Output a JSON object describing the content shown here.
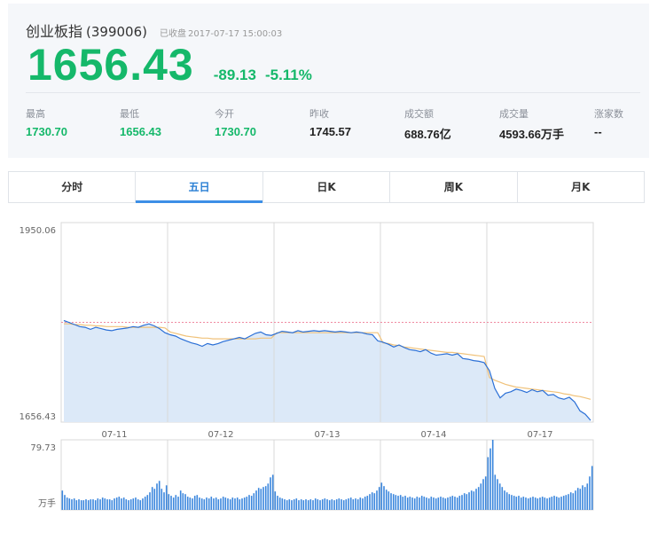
{
  "quote": {
    "name": "创业板指",
    "code": "(399006)",
    "status": "已收盘",
    "timestamp": "2017-07-17  15:00:03",
    "price": "1656.43",
    "change": "-89.13",
    "change_pct": "-5.11%"
  },
  "stats": [
    {
      "label": "最高",
      "value": "1730.70",
      "color": "#15b86a"
    },
    {
      "label": "最低",
      "value": "1656.43",
      "color": "#15b86a"
    },
    {
      "label": "今开",
      "value": "1730.70",
      "color": "#15b86a"
    },
    {
      "label": "昨收",
      "value": "1745.57",
      "color": "#222222"
    },
    {
      "label": "成交额",
      "value": "688.76亿",
      "color": "#222222"
    },
    {
      "label": "成交量",
      "value": "4593.66万手",
      "color": "#222222"
    },
    {
      "label": "涨家数",
      "value": "--",
      "color": "#222222"
    }
  ],
  "tabs": [
    {
      "label": "分时",
      "active": false
    },
    {
      "label": "五日",
      "active": true
    },
    {
      "label": "日K",
      "active": false
    },
    {
      "label": "周K",
      "active": false
    },
    {
      "label": "月K",
      "active": false
    }
  ],
  "chart_data": [
    {
      "type": "line",
      "title": "",
      "ylim": [
        1656.43,
        1950.06
      ],
      "y_ticks": [
        "1950.06",
        "1656.43"
      ],
      "reference_line": 1803.25,
      "days": [
        "07-11",
        "07-12",
        "07-13",
        "07-14",
        "07-17"
      ],
      "series": [
        {
          "values": [
            [
              1806,
              1803,
              1800,
              1797,
              1796,
              1793,
              1796,
              1794,
              1792,
              1791,
              1793,
              1794,
              1795,
              1797,
              1796,
              1799,
              1801,
              1798,
              1794,
              1788
            ],
            [
              1785,
              1783,
              1779,
              1776,
              1773,
              1771,
              1768,
              1772,
              1770,
              1772,
              1775,
              1777,
              1779,
              1781,
              1779,
              1783,
              1787,
              1789,
              1785,
              1784
            ],
            [
              1787,
              1790,
              1789,
              1788,
              1791,
              1789,
              1790,
              1791,
              1790,
              1791,
              1790,
              1789,
              1790,
              1789,
              1788,
              1789,
              1788,
              1786,
              1785,
              1776
            ],
            [
              1774,
              1771,
              1767,
              1770,
              1766,
              1763,
              1762,
              1760,
              1763,
              1758,
              1755,
              1756,
              1757,
              1755,
              1757,
              1750,
              1749,
              1747,
              1746,
              1744
            ],
            [
              1732,
              1706,
              1692,
              1699,
              1701,
              1705,
              1703,
              1700,
              1704,
              1701,
              1703,
              1696,
              1697,
              1692,
              1690,
              1693,
              1686,
              1673,
              1668,
              1659
            ]
          ]
        },
        {
          "values": [
            [
              1801,
              1801,
              1800,
              1800,
              1799,
              1799,
              1798,
              1798,
              1797,
              1797,
              1797,
              1797,
              1796,
              1796,
              1796,
              1796,
              1796,
              1796,
              1796,
              1795
            ],
            [
              1789,
              1787,
              1785,
              1783,
              1782,
              1781,
              1780,
              1780,
              1779,
              1779,
              1779,
              1779,
              1779,
              1779,
              1779,
              1779,
              1779,
              1780,
              1780,
              1780
            ],
            [
              1788,
              1788,
              1788,
              1788,
              1788,
              1788,
              1788,
              1788,
              1788,
              1788,
              1788,
              1788,
              1788,
              1788,
              1788,
              1788,
              1788,
              1788,
              1788,
              1788
            ],
            [
              1773,
              1772,
              1770,
              1769,
              1767,
              1766,
              1765,
              1764,
              1763,
              1762,
              1761,
              1760,
              1759,
              1759,
              1758,
              1757,
              1756,
              1755,
              1754,
              1753
            ],
            [
              1722,
              1718,
              1715,
              1712,
              1710,
              1708,
              1707,
              1706,
              1705,
              1704,
              1703,
              1702,
              1701,
              1700,
              1698,
              1697,
              1695,
              1694,
              1692,
              1690
            ]
          ]
        }
      ]
    },
    {
      "type": "bar",
      "title": "",
      "ylim": [
        0,
        79.73
      ],
      "y_top_label": "79.73",
      "unit_label": "万手",
      "series": [
        {
          "values": [
            [
              22,
              17,
              14,
              13,
              12,
              13,
              11,
              12,
              11,
              11,
              12,
              11,
              12,
              12,
              11,
              13,
              12,
              14,
              13,
              12,
              12,
              11,
              13,
              14,
              15,
              13,
              14,
              12,
              11,
              12,
              13,
              14,
              12,
              11,
              13,
              15,
              17,
              20,
              26,
              24,
              30,
              33,
              24,
              20,
              28
            ],
            [
              18,
              16,
              14,
              17,
              15,
              22,
              19,
              18,
              15,
              14,
              13,
              16,
              17,
              14,
              13,
              12,
              14,
              13,
              15,
              13,
              14,
              12,
              13,
              15,
              14,
              13,
              12,
              14,
              13,
              14,
              12,
              13,
              14,
              15,
              17,
              16,
              19,
              22,
              25,
              24,
              26,
              27,
              30,
              37,
              40
            ],
            [
              21,
              16,
              14,
              13,
              12,
              11,
              12,
              11,
              12,
              13,
              11,
              12,
              11,
              12,
              11,
              12,
              11,
              13,
              12,
              11,
              12,
              13,
              12,
              11,
              12,
              11,
              12,
              13,
              12,
              11,
              12,
              13,
              14,
              12,
              13,
              12,
              14,
              13,
              15,
              16,
              18,
              20,
              19,
              22,
              26
            ],
            [
              31,
              27,
              23,
              21,
              19,
              18,
              17,
              16,
              17,
              15,
              16,
              14,
              15,
              14,
              13,
              15,
              14,
              16,
              15,
              14,
              13,
              15,
              14,
              13,
              14,
              15,
              14,
              13,
              14,
              15,
              16,
              15,
              14,
              16,
              17,
              19,
              18,
              20,
              22,
              21,
              24,
              26,
              30,
              35,
              38
            ],
            [
              60,
              70,
              79.73,
              40,
              35,
              30,
              26,
              22,
              20,
              18,
              17,
              16,
              15,
              16,
              14,
              15,
              14,
              13,
              14,
              15,
              14,
              13,
              14,
              15,
              14,
              13,
              14,
              15,
              16,
              15,
              14,
              15,
              16,
              17,
              18,
              20,
              19,
              22,
              25,
              24,
              28,
              26,
              30,
              38,
              50
            ]
          ]
        }
      ]
    }
  ]
}
